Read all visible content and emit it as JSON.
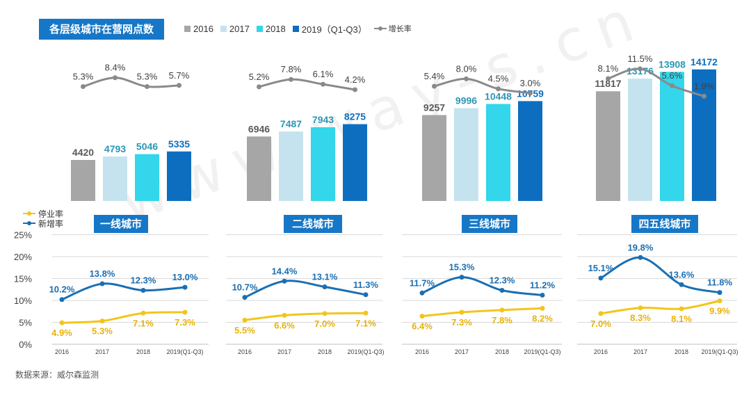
{
  "title": "各层级城市在营网点数",
  "legend_top": {
    "years": [
      {
        "label": "2016",
        "color": "#a6a6a6"
      },
      {
        "label": "2017",
        "color": "#c5e3ef"
      },
      {
        "label": "2018",
        "color": "#33d6ea"
      },
      {
        "label": "2019（Q1-Q3）",
        "color": "#0d6ebf"
      }
    ],
    "growth_label": "增长率",
    "growth_color": "#8a8a8a"
  },
  "legend_bottom": {
    "closure_label": "停业率",
    "closure_color": "#f2c51c",
    "newrate_label": "新增率",
    "newrate_color": "#1a6fb3"
  },
  "watermark": "www.way-s.cn",
  "source": "数据来源：威尔森监测",
  "chart_data": [
    {
      "type": "bar",
      "title": "各层级城市在营网点数",
      "categories": [
        "2016",
        "2017",
        "2018",
        "2019（Q1-Q3）"
      ],
      "groups": [
        {
          "name": "一线城市",
          "values": [
            4420,
            4793,
            5046,
            5335
          ],
          "growth_rate": [
            "5.3%",
            "8.4%",
            "5.3%",
            "5.7%"
          ]
        },
        {
          "name": "二线城市",
          "values": [
            6946,
            7487,
            7943,
            8275
          ],
          "growth_rate": [
            "5.2%",
            "7.8%",
            "6.1%",
            "4.2%"
          ]
        },
        {
          "name": "三线城市",
          "values": [
            9257,
            9996,
            10448,
            10759
          ],
          "growth_rate": [
            "5.4%",
            "8.0%",
            "4.5%",
            "3.0%"
          ]
        },
        {
          "name": "四五线城市",
          "values": [
            11817,
            13176,
            13908,
            14172
          ],
          "growth_rate": [
            "8.1%",
            "11.5%",
            "5.6%",
            "1.9%"
          ]
        }
      ],
      "ylim": [
        0,
        15000
      ]
    },
    {
      "type": "line",
      "categories": [
        "2016",
        "2017",
        "2018",
        "2019(Q1-Q3)"
      ],
      "y_ticks": [
        "0%",
        "5%",
        "10%",
        "15%",
        "20%",
        "25%"
      ],
      "ylim": [
        0,
        25
      ],
      "grid": true,
      "groups": [
        {
          "name": "一线城市",
          "series": [
            {
              "name": "停业率",
              "values": [
                4.9,
                5.3,
                7.1,
                7.3
              ],
              "labels": [
                "4.9%",
                "5.3%",
                "7.1%",
                "7.3%"
              ]
            },
            {
              "name": "新增率",
              "values": [
                10.2,
                13.8,
                12.3,
                13.0
              ],
              "labels": [
                "10.2%",
                "13.8%",
                "12.3%",
                "13.0%"
              ]
            }
          ]
        },
        {
          "name": "二线城市",
          "series": [
            {
              "name": "停业率",
              "values": [
                5.5,
                6.6,
                7.0,
                7.1
              ],
              "labels": [
                "5.5%",
                "6.6%",
                "7.0%",
                "7.1%"
              ]
            },
            {
              "name": "新增率",
              "values": [
                10.7,
                14.4,
                13.1,
                11.3
              ],
              "labels": [
                "10.7%",
                "14.4%",
                "13.1%",
                "11.3%"
              ]
            }
          ]
        },
        {
          "name": "三线城市",
          "series": [
            {
              "name": "停业率",
              "values": [
                6.4,
                7.3,
                7.8,
                8.2
              ],
              "labels": [
                "6.4%",
                "7.3%",
                "7.8%",
                "8.2%"
              ]
            },
            {
              "name": "新增率",
              "values": [
                11.7,
                15.3,
                12.3,
                11.2
              ],
              "labels": [
                "11.7%",
                "15.3%",
                "12.3%",
                "11.2%"
              ]
            }
          ]
        },
        {
          "name": "四五线城市",
          "series": [
            {
              "name": "停业率",
              "values": [
                7.0,
                8.3,
                8.1,
                9.9
              ],
              "labels": [
                "7.0%",
                "8.3%",
                "8.1%",
                "9.9%"
              ]
            },
            {
              "name": "新增率",
              "values": [
                15.1,
                19.8,
                13.6,
                11.8
              ],
              "labels": [
                "15.1%",
                "19.8%",
                "13.6%",
                "11.8%"
              ]
            }
          ]
        }
      ]
    }
  ]
}
